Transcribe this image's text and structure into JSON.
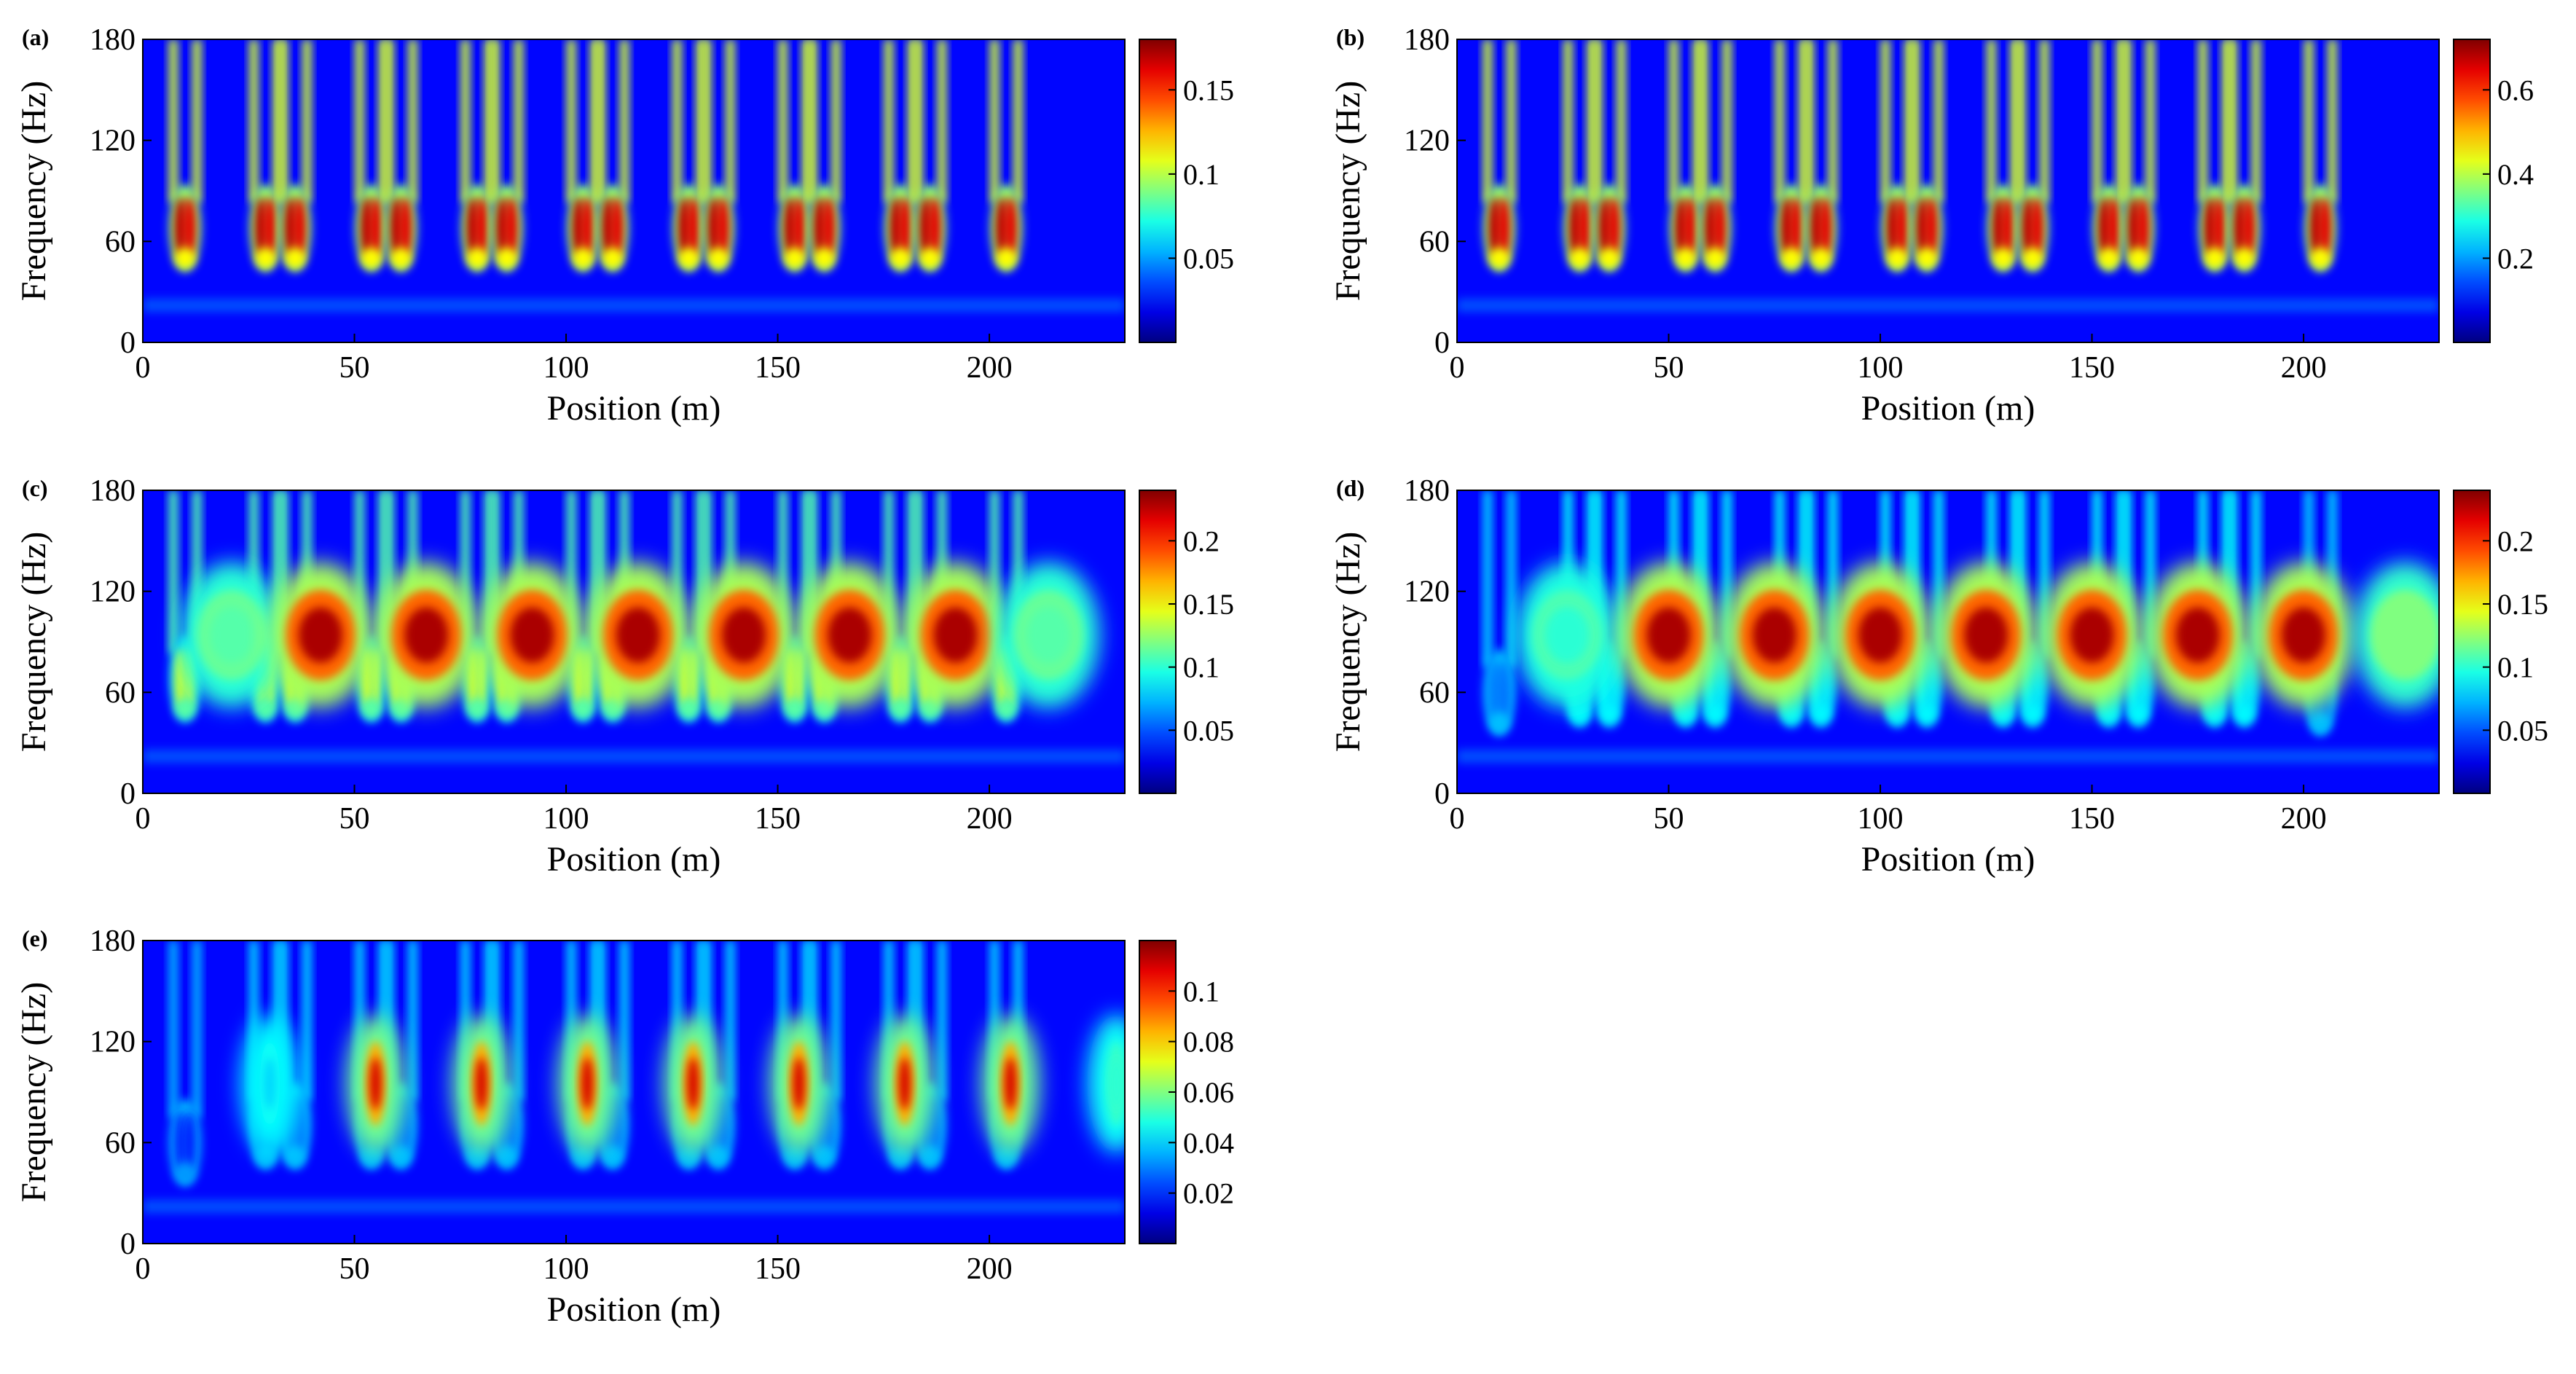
{
  "chart_data": [
    {
      "id": "a",
      "panel_label": "(a)",
      "type": "heatmap",
      "xlabel": "Position (m)",
      "ylabel": "Frequency (Hz)",
      "xlim": [
        0,
        232
      ],
      "ylim": [
        0,
        180
      ],
      "x_ticks": [
        0,
        50,
        100,
        150,
        200
      ],
      "y_ticks": [
        0,
        60,
        120,
        180
      ],
      "colorbar": {
        "min": 0,
        "max": 0.18,
        "ticks": [
          0.05,
          0.1,
          0.15
        ],
        "tick_labels": [
          "0.05",
          "0.1",
          "0.15"
        ]
      },
      "features": [
        {
          "kind": "vpair",
          "x": [
            10
          ],
          "f": 68,
          "v": 0.17
        },
        {
          "kind": "vpair",
          "x": [
            29,
            36
          ],
          "f": 68,
          "v": 0.17
        },
        {
          "kind": "vpair",
          "x": [
            54,
            61
          ],
          "f": 68,
          "v": 0.17
        },
        {
          "kind": "vpair",
          "x": [
            79,
            86
          ],
          "f": 68,
          "v": 0.17
        },
        {
          "kind": "vpair",
          "x": [
            104,
            111
          ],
          "f": 68,
          "v": 0.17
        },
        {
          "kind": "vpair",
          "x": [
            129,
            136
          ],
          "f": 68,
          "v": 0.17
        },
        {
          "kind": "vpair",
          "x": [
            154,
            161
          ],
          "f": 68,
          "v": 0.17
        },
        {
          "kind": "vpair",
          "x": [
            179,
            186
          ],
          "f": 68,
          "v": 0.17
        },
        {
          "kind": "vpair",
          "x": [
            204
          ],
          "f": 68,
          "v": 0.17
        }
      ]
    },
    {
      "id": "b",
      "panel_label": "(b)",
      "type": "heatmap",
      "xlabel": "Position (m)",
      "ylabel": "Frequency (Hz)",
      "xlim": [
        0,
        232
      ],
      "ylim": [
        0,
        180
      ],
      "x_ticks": [
        0,
        50,
        100,
        150,
        200
      ],
      "y_ticks": [
        0,
        60,
        120,
        180
      ],
      "colorbar": {
        "min": 0,
        "max": 0.72,
        "ticks": [
          0.2,
          0.4,
          0.6
        ],
        "tick_labels": [
          "0.2",
          "0.4",
          "0.6"
        ]
      },
      "features": [
        {
          "kind": "vpair",
          "x": [
            10
          ],
          "f": 68,
          "v": 0.68
        },
        {
          "kind": "vpair",
          "x": [
            29,
            36
          ],
          "f": 68,
          "v": 0.68
        },
        {
          "kind": "vpair",
          "x": [
            54,
            61
          ],
          "f": 68,
          "v": 0.68
        },
        {
          "kind": "vpair",
          "x": [
            79,
            86
          ],
          "f": 68,
          "v": 0.68
        },
        {
          "kind": "vpair",
          "x": [
            104,
            111
          ],
          "f": 68,
          "v": 0.68
        },
        {
          "kind": "vpair",
          "x": [
            129,
            136
          ],
          "f": 68,
          "v": 0.68
        },
        {
          "kind": "vpair",
          "x": [
            154,
            161
          ],
          "f": 68,
          "v": 0.68
        },
        {
          "kind": "vpair",
          "x": [
            179,
            186
          ],
          "f": 68,
          "v": 0.68
        },
        {
          "kind": "vpair",
          "x": [
            204
          ],
          "f": 68,
          "v": 0.68
        }
      ]
    },
    {
      "id": "c",
      "panel_label": "(c)",
      "type": "heatmap",
      "xlabel": "Position (m)",
      "ylabel": "Frequency (Hz)",
      "xlim": [
        0,
        232
      ],
      "ylim": [
        0,
        180
      ],
      "x_ticks": [
        0,
        50,
        100,
        150,
        200
      ],
      "y_ticks": [
        0,
        60,
        120,
        180
      ],
      "colorbar": {
        "min": 0,
        "max": 0.24,
        "ticks": [
          0.05,
          0.1,
          0.15,
          0.2
        ],
        "tick_labels": [
          "0.05",
          "0.1",
          "0.15",
          "0.2"
        ]
      },
      "features": [
        {
          "kind": "vpair",
          "x": [
            10
          ],
          "f": 68,
          "v": 0.14
        },
        {
          "kind": "vpair",
          "x": [
            29,
            36
          ],
          "f": 68,
          "v": 0.14
        },
        {
          "kind": "vpair",
          "x": [
            54,
            61
          ],
          "f": 68,
          "v": 0.14
        },
        {
          "kind": "vpair",
          "x": [
            79,
            86
          ],
          "f": 68,
          "v": 0.14
        },
        {
          "kind": "vpair",
          "x": [
            104,
            111
          ],
          "f": 68,
          "v": 0.14
        },
        {
          "kind": "vpair",
          "x": [
            129,
            136
          ],
          "f": 68,
          "v": 0.14
        },
        {
          "kind": "vpair",
          "x": [
            154,
            161
          ],
          "f": 68,
          "v": 0.14
        },
        {
          "kind": "vpair",
          "x": [
            179,
            186
          ],
          "f": 68,
          "v": 0.14
        },
        {
          "kind": "vpair",
          "x": [
            204
          ],
          "f": 68,
          "v": 0.14
        },
        {
          "kind": "blob",
          "x": 21,
          "f": 94,
          "v": 0.11
        },
        {
          "kind": "blob",
          "x": 42,
          "f": 94,
          "v": 0.23
        },
        {
          "kind": "blob",
          "x": 67,
          "f": 94,
          "v": 0.23
        },
        {
          "kind": "blob",
          "x": 92,
          "f": 94,
          "v": 0.23
        },
        {
          "kind": "blob",
          "x": 117,
          "f": 94,
          "v": 0.23
        },
        {
          "kind": "blob",
          "x": 142,
          "f": 94,
          "v": 0.23
        },
        {
          "kind": "blob",
          "x": 167,
          "f": 94,
          "v": 0.23
        },
        {
          "kind": "blob",
          "x": 192,
          "f": 94,
          "v": 0.23
        },
        {
          "kind": "blob",
          "x": 214,
          "f": 94,
          "v": 0.11
        }
      ]
    },
    {
      "id": "d",
      "panel_label": "(d)",
      "type": "heatmap",
      "xlabel": "Position (m)",
      "ylabel": "Frequency (Hz)",
      "xlim": [
        0,
        232
      ],
      "ylim": [
        0,
        180
      ],
      "x_ticks": [
        0,
        50,
        100,
        150,
        200
      ],
      "y_ticks": [
        0,
        60,
        120,
        180
      ],
      "colorbar": {
        "min": 0,
        "max": 0.24,
        "ticks": [
          0.05,
          0.1,
          0.15,
          0.2
        ],
        "tick_labels": [
          "0.05",
          "0.1",
          "0.15",
          "0.2"
        ]
      },
      "features": [
        {
          "kind": "vpair",
          "x": [
            10
          ],
          "f": 60,
          "v": 0.06
        },
        {
          "kind": "vpair",
          "x": [
            29,
            36
          ],
          "f": 65,
          "v": 0.09
        },
        {
          "kind": "vpair",
          "x": [
            54,
            61
          ],
          "f": 65,
          "v": 0.09
        },
        {
          "kind": "vpair",
          "x": [
            79,
            86
          ],
          "f": 65,
          "v": 0.09
        },
        {
          "kind": "vpair",
          "x": [
            104,
            111
          ],
          "f": 65,
          "v": 0.09
        },
        {
          "kind": "vpair",
          "x": [
            129,
            136
          ],
          "f": 65,
          "v": 0.09
        },
        {
          "kind": "vpair",
          "x": [
            154,
            161
          ],
          "f": 65,
          "v": 0.09
        },
        {
          "kind": "vpair",
          "x": [
            179,
            186
          ],
          "f": 65,
          "v": 0.09
        },
        {
          "kind": "vpair",
          "x": [
            204
          ],
          "f": 60,
          "v": 0.06
        },
        {
          "kind": "blob",
          "x": 26,
          "f": 94,
          "v": 0.1
        },
        {
          "kind": "blob",
          "x": 50,
          "f": 94,
          "v": 0.23
        },
        {
          "kind": "blob",
          "x": 75,
          "f": 94,
          "v": 0.23
        },
        {
          "kind": "blob",
          "x": 100,
          "f": 94,
          "v": 0.23
        },
        {
          "kind": "blob",
          "x": 125,
          "f": 94,
          "v": 0.23
        },
        {
          "kind": "blob",
          "x": 150,
          "f": 94,
          "v": 0.23
        },
        {
          "kind": "blob",
          "x": 175,
          "f": 94,
          "v": 0.23
        },
        {
          "kind": "blob",
          "x": 200,
          "f": 94,
          "v": 0.23
        },
        {
          "kind": "blob",
          "x": 224,
          "f": 94,
          "v": 0.12
        }
      ]
    },
    {
      "id": "e",
      "panel_label": "(e)",
      "type": "heatmap",
      "xlabel": "Position (m)",
      "ylabel": "Frequency (Hz)",
      "xlim": [
        0,
        232
      ],
      "ylim": [
        0,
        180
      ],
      "x_ticks": [
        0,
        50,
        100,
        150,
        200
      ],
      "y_ticks": [
        0,
        60,
        120,
        180
      ],
      "colorbar": {
        "min": 0,
        "max": 0.12,
        "ticks": [
          0.02,
          0.04,
          0.06,
          0.08,
          0.1
        ],
        "tick_labels": [
          "0.02",
          "0.04",
          "0.06",
          "0.08",
          "0.1"
        ]
      },
      "features": [
        {
          "kind": "vpair",
          "x": [
            10
          ],
          "f": 60,
          "v": 0.02
        },
        {
          "kind": "vpair",
          "x": [
            29,
            36
          ],
          "f": 70,
          "v": 0.03
        },
        {
          "kind": "vpair",
          "x": [
            54,
            61
          ],
          "f": 70,
          "v": 0.03
        },
        {
          "kind": "vpair",
          "x": [
            79,
            86
          ],
          "f": 70,
          "v": 0.03
        },
        {
          "kind": "vpair",
          "x": [
            104,
            111
          ],
          "f": 70,
          "v": 0.03
        },
        {
          "kind": "vpair",
          "x": [
            129,
            136
          ],
          "f": 70,
          "v": 0.03
        },
        {
          "kind": "vpair",
          "x": [
            154,
            161
          ],
          "f": 70,
          "v": 0.03
        },
        {
          "kind": "vpair",
          "x": [
            179,
            186
          ],
          "f": 70,
          "v": 0.03
        },
        {
          "kind": "vpair",
          "x": [
            204
          ],
          "f": 70,
          "v": 0.03
        },
        {
          "kind": "needle",
          "x": 30,
          "f": 95,
          "v": 0.04
        },
        {
          "kind": "needle",
          "x": 55,
          "f": 95,
          "v": 0.11
        },
        {
          "kind": "needle",
          "x": 80,
          "f": 95,
          "v": 0.11
        },
        {
          "kind": "needle",
          "x": 105,
          "f": 95,
          "v": 0.11
        },
        {
          "kind": "needle",
          "x": 130,
          "f": 95,
          "v": 0.11
        },
        {
          "kind": "needle",
          "x": 155,
          "f": 95,
          "v": 0.11
        },
        {
          "kind": "needle",
          "x": 180,
          "f": 95,
          "v": 0.11
        },
        {
          "kind": "needle",
          "x": 205,
          "f": 95,
          "v": 0.11
        },
        {
          "kind": "needle",
          "x": 230,
          "f": 95,
          "v": 0.05
        }
      ]
    }
  ]
}
